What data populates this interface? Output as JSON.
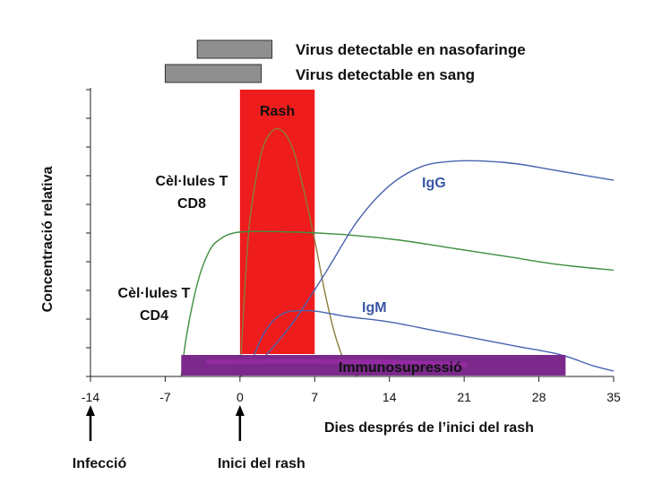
{
  "chart_data": {
    "type": "line",
    "title": "",
    "xlabel": "Dies després de l’inici del rash",
    "ylabel": "Concentració relativa",
    "xlim": [
      -14,
      35
    ],
    "ylim": [
      0,
      1
    ],
    "x_ticks": [
      -14,
      -7,
      0,
      7,
      14,
      21,
      28,
      35
    ],
    "y_tick_count": 11,
    "grid": false,
    "series": [
      {
        "name": "Cèl·lules T CD8",
        "color": "#8a7d3c",
        "points": [
          [
            0,
            0.0
          ],
          [
            0.5,
            0.35
          ],
          [
            1,
            0.6
          ],
          [
            2,
            0.82
          ],
          [
            3,
            0.9
          ],
          [
            4,
            0.9
          ],
          [
            5,
            0.83
          ],
          [
            6,
            0.68
          ],
          [
            7,
            0.5
          ],
          [
            8,
            0.3
          ],
          [
            9,
            0.14
          ],
          [
            10,
            0.04
          ],
          [
            11,
            0.0
          ]
        ]
      },
      {
        "name": "Cèl·lules T CD4",
        "color": "#3f8f3f",
        "points": [
          [
            -5.5,
            0.0
          ],
          [
            -5,
            0.15
          ],
          [
            -4,
            0.34
          ],
          [
            -3,
            0.45
          ],
          [
            -2,
            0.5
          ],
          [
            0,
            0.53
          ],
          [
            5,
            0.53
          ],
          [
            10,
            0.52
          ],
          [
            15,
            0.5
          ],
          [
            20,
            0.47
          ],
          [
            25,
            0.44
          ],
          [
            30,
            0.41
          ],
          [
            35,
            0.39
          ]
        ]
      },
      {
        "name": "IgG",
        "color": "#4a64b0",
        "points": [
          [
            0,
            0.0
          ],
          [
            2,
            0.06
          ],
          [
            5,
            0.2
          ],
          [
            8,
            0.38
          ],
          [
            11,
            0.57
          ],
          [
            14,
            0.7
          ],
          [
            17,
            0.77
          ],
          [
            20,
            0.79
          ],
          [
            23,
            0.79
          ],
          [
            26,
            0.78
          ],
          [
            29,
            0.76
          ],
          [
            32,
            0.74
          ],
          [
            35,
            0.72
          ]
        ]
      },
      {
        "name": "IgM",
        "color": "#4a64b0",
        "points": [
          [
            0,
            0.0
          ],
          [
            1,
            0.05
          ],
          [
            2,
            0.14
          ],
          [
            3,
            0.2
          ],
          [
            4,
            0.23
          ],
          [
            5,
            0.24
          ],
          [
            7,
            0.24
          ],
          [
            10,
            0.22
          ],
          [
            14,
            0.2
          ],
          [
            18,
            0.17
          ],
          [
            22,
            0.14
          ],
          [
            26,
            0.11
          ],
          [
            30,
            0.08
          ],
          [
            33,
            0.04
          ],
          [
            35,
            0.02
          ]
        ]
      }
    ],
    "bars": [
      {
        "label": "Virus detectable en nasofaringe",
        "x_start": -4,
        "x_end": 3
      },
      {
        "label": "Virus detectable en sang",
        "x_start": -7,
        "x_end": 2
      }
    ],
    "regions": [
      {
        "label": "Rash",
        "x_start": 0,
        "x_end": 7,
        "color": "#ee1c1c"
      },
      {
        "label": "Immunosupressió",
        "x_start": -5.5,
        "x_end": 30.5,
        "color": "#7b2a8c"
      }
    ],
    "series_labels": {
      "cd8": [
        "Cèl·lules T",
        "CD8"
      ],
      "cd4": [
        "Cèl·lules T",
        "CD4"
      ],
      "igg": "IgG",
      "igm": "IgM"
    },
    "annotations": {
      "infection": {
        "label": "Infecció",
        "x": -14
      },
      "rash_onset": {
        "label": "Inici del rash",
        "x": 0
      }
    }
  }
}
